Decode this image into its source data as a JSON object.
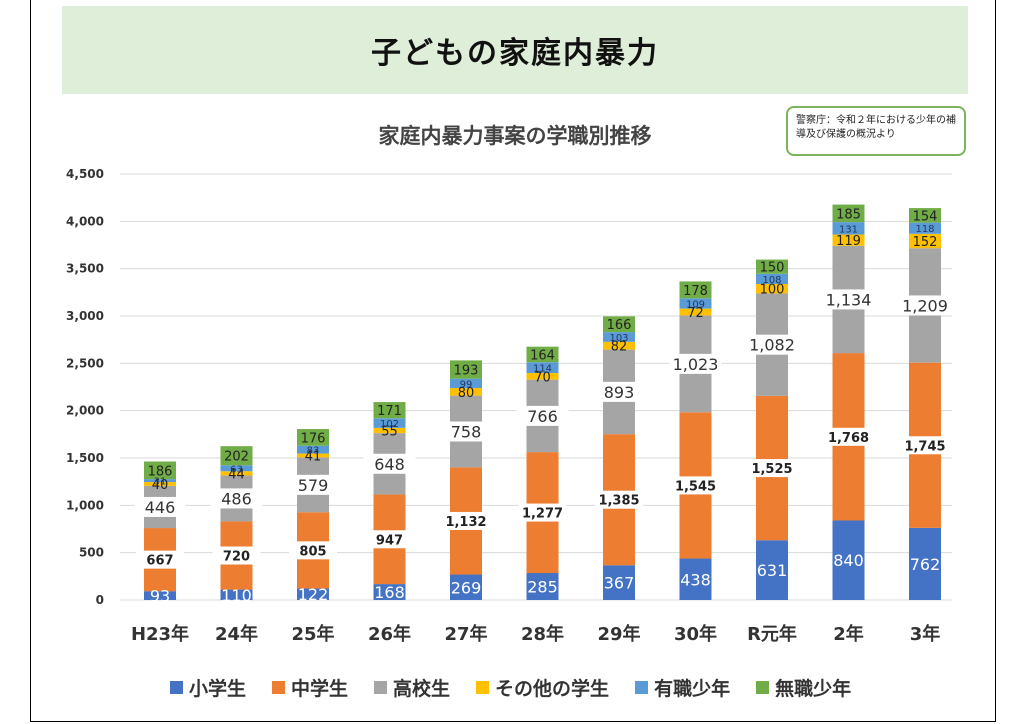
{
  "banner": {
    "title": "子どもの家庭内暴力"
  },
  "source_note": "警察庁：令和２年における少年の補導及び保護の概況より",
  "chart_data": {
    "type": "bar",
    "stacked": true,
    "title": "家庭内暴力事案の学職別推移",
    "xlabel": "",
    "ylabel": "",
    "ylim": [
      0,
      4500
    ],
    "yticks": [
      0,
      500,
      1000,
      1500,
      2000,
      2500,
      3000,
      3500,
      4000,
      4500
    ],
    "ytick_labels": [
      "0",
      "500",
      "1,000",
      "1,500",
      "2,000",
      "2,500",
      "3,000",
      "3,500",
      "4,000",
      "4,500"
    ],
    "grid": true,
    "legend_position": "bottom",
    "categories": [
      "H23年",
      "24年",
      "25年",
      "26年",
      "27年",
      "28年",
      "29年",
      "30年",
      "R元年",
      "2年",
      "3年"
    ],
    "series": [
      {
        "name": "小学生",
        "color": "#4472c4",
        "values": [
          93,
          110,
          122,
          168,
          269,
          285,
          367,
          438,
          631,
          840,
          762
        ]
      },
      {
        "name": "中学生",
        "color": "#ed7d31",
        "values": [
          667,
          720,
          805,
          947,
          1132,
          1277,
          1385,
          1545,
          1525,
          1768,
          1745
        ]
      },
      {
        "name": "高校生",
        "color": "#a5a5a5",
        "values": [
          446,
          486,
          579,
          648,
          758,
          766,
          893,
          1023,
          1082,
          1134,
          1209
        ]
      },
      {
        "name": "その他の学生",
        "color": "#ffc000",
        "values": [
          40,
          44,
          41,
          55,
          80,
          70,
          82,
          72,
          100,
          119,
          152
        ]
      },
      {
        "name": "有職少年",
        "color": "#5b9bd5",
        "values": [
          31,
          63,
          83,
          102,
          99,
          114,
          103,
          109,
          108,
          131,
          118
        ]
      },
      {
        "name": "無職少年",
        "color": "#70ad47",
        "values": [
          186,
          202,
          176,
          171,
          193,
          164,
          166,
          178,
          150,
          185,
          154
        ]
      }
    ]
  }
}
